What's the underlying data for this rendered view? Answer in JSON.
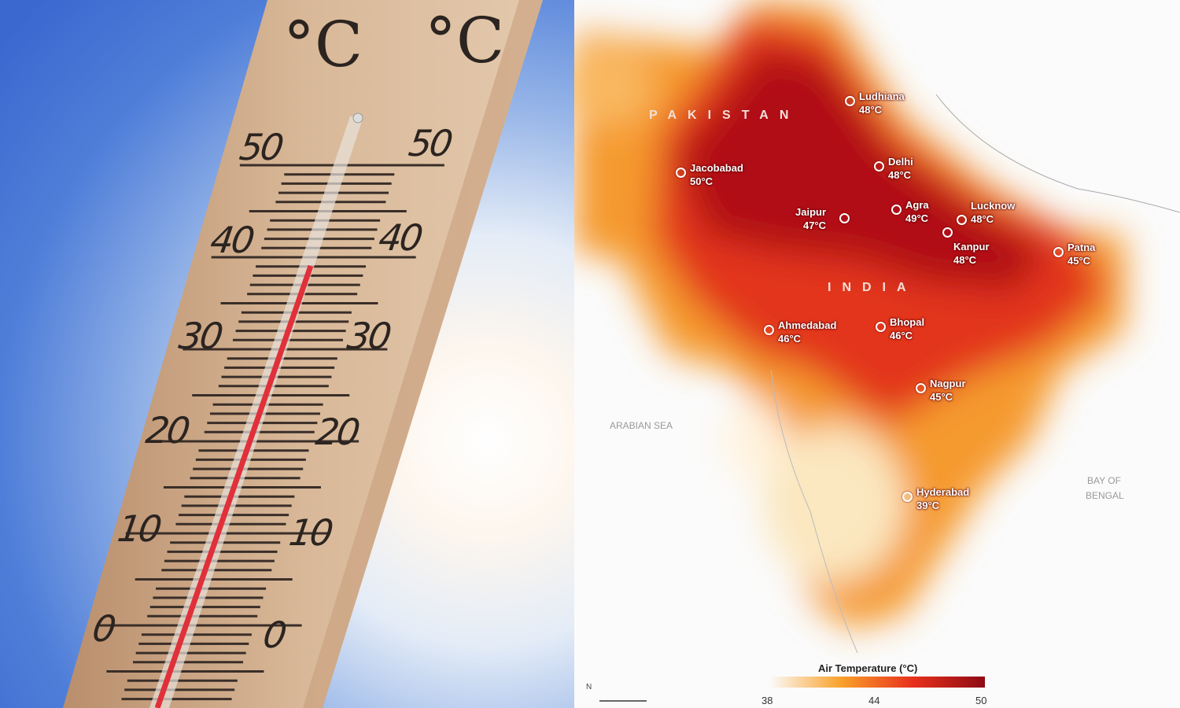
{
  "thermometer": {
    "unit_label": "°C",
    "scale_values": [
      "50",
      "40",
      "30",
      "20",
      "10",
      "0"
    ],
    "reading_celsius": 37
  },
  "map": {
    "region_labels": {
      "pakistan": "PAKISTAN",
      "india": "INDIA"
    },
    "water_labels": {
      "arabian_sea": "ARABIAN SEA",
      "bay_of_bengal_1": "BAY OF",
      "bay_of_bengal_2": "BENGAL"
    },
    "cities": [
      {
        "name": "Ludhiana",
        "temp": "48°C"
      },
      {
        "name": "Jacobabad",
        "temp": "50°C"
      },
      {
        "name": "Delhi",
        "temp": "48°C"
      },
      {
        "name": "Agra",
        "temp": "49°C"
      },
      {
        "name": "Lucknow",
        "temp": "48°C"
      },
      {
        "name": "Jaipur",
        "temp": "47°C"
      },
      {
        "name": "Kanpur",
        "temp": "48°C"
      },
      {
        "name": "Patna",
        "temp": "45°C"
      },
      {
        "name": "Ahmedabad",
        "temp": "46°C"
      },
      {
        "name": "Bhopal",
        "temp": "46°C"
      },
      {
        "name": "Nagpur",
        "temp": "45°C"
      },
      {
        "name": "Hyderabad",
        "temp": "39°C"
      }
    ],
    "legend": {
      "title": "Air Temperature (°C)",
      "min": "38",
      "mid": "44",
      "max": "50",
      "colors": [
        "#fde9a0",
        "#f9a12b",
        "#e8301c",
        "#8e0a14"
      ]
    },
    "north_arrow": "N"
  }
}
